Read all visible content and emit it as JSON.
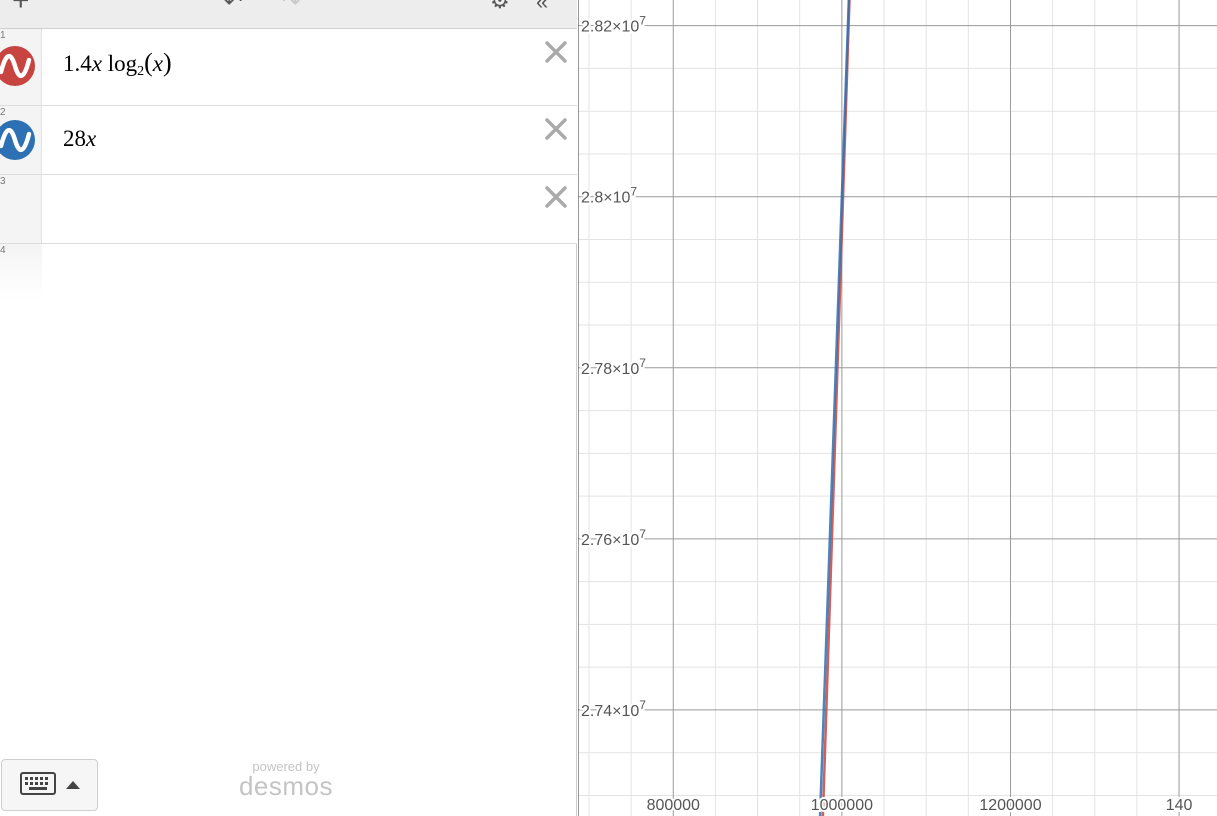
{
  "expressions": [
    {
      "number": "1",
      "color": "#c74440",
      "latex_parts": [
        "1.4",
        "x",
        " log",
        "2",
        "x"
      ]
    },
    {
      "number": "2",
      "color": "#2d70b3",
      "latex_parts": [
        "28",
        "x"
      ]
    },
    {
      "number": "3"
    },
    {
      "number": "4"
    }
  ],
  "branding": {
    "powered_by": "powered by",
    "name": "desmos"
  },
  "icons": {
    "add": "plus-icon",
    "undo": "undo-icon",
    "redo": "redo-icon",
    "settings": "gear-icon",
    "collapse": "double-chevron-left-icon",
    "delete": "close-icon",
    "keyboard": "keyboard-icon",
    "keyboard_toggle": "caret-up-icon"
  },
  "chart_data": {
    "type": "line",
    "x_ticks": [
      "800000",
      "1000000",
      "1200000",
      "140"
    ],
    "y_ticks": [
      "2.82×10",
      "2.8×10",
      "2.78×10",
      "2.76×10",
      "2.74×10"
    ],
    "y_tick_exponent": "7",
    "xlim": [
      687000,
      1445000
    ],
    "ylim": [
      27276000,
      28230000
    ],
    "grid": true,
    "series": [
      {
        "expression": "1.4x log2(x)",
        "color": "#c74440",
        "points": [
          [
            977500,
            27276000
          ],
          [
            1009000,
            28230000
          ]
        ]
      },
      {
        "expression": "28x",
        "color": "#2d70b3",
        "points": [
          [
            974143,
            27276000
          ],
          [
            1008214,
            28230000
          ]
        ]
      }
    ]
  }
}
